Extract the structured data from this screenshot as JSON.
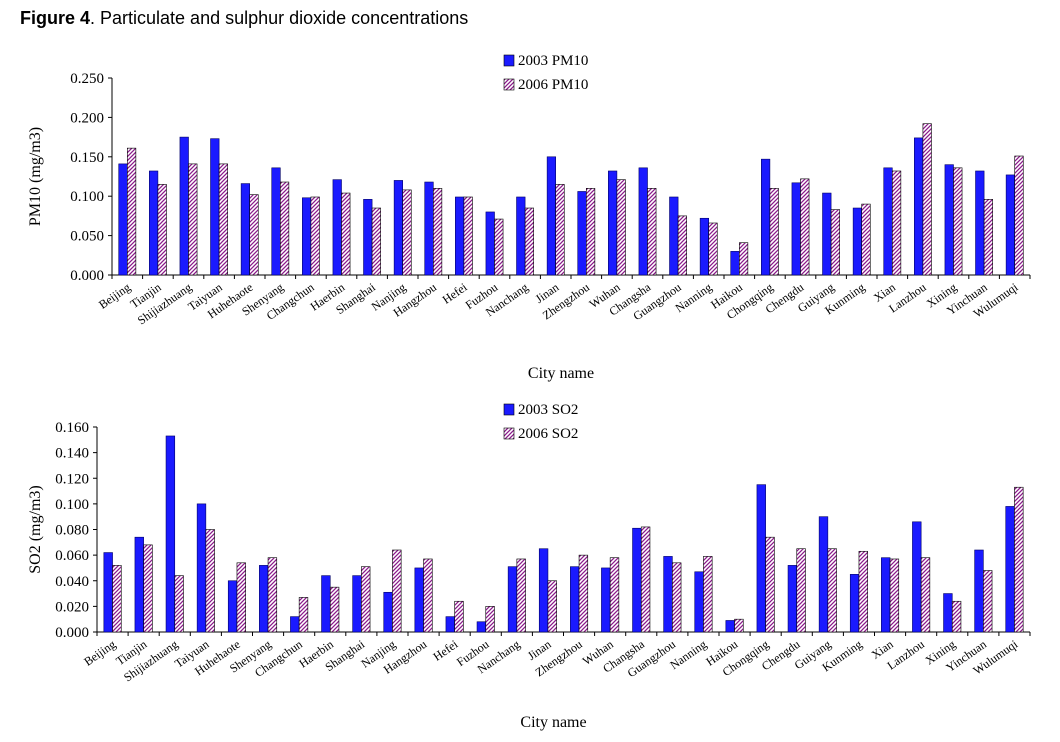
{
  "figure": {
    "label": "Figure 4",
    "caption": ". Particulate and sulphur dioxide concentrations"
  },
  "colors": {
    "series_2003": "#1a1aff",
    "series_2006": "#8b1a8b"
  },
  "chart_data": [
    {
      "type": "bar",
      "ylabel": "PM10 (mg/m3)",
      "xlabel": "City name",
      "ylim": [
        0,
        0.25
      ],
      "yticks": [
        "0.000",
        "0.050",
        "0.100",
        "0.150",
        "0.200",
        "0.250"
      ],
      "legend_position": "top-center",
      "categories": [
        "Beijing",
        "Tianjin",
        "Shijiazhuang",
        "Taiyuan",
        "Huhehaote",
        "Shenyang",
        "Changchun",
        "Haerbin",
        "Shanghai",
        "Nanjing",
        "Hangzhou",
        "Hefei",
        "Fuzhou",
        "Nanchang",
        "Jinan",
        "Zhengzhou",
        "Wuhan",
        "Changsha",
        "Guangzhou",
        "Nanning",
        "Haikou",
        "Chongqing",
        "Chengdu",
        "Guiyang",
        "Kunming",
        "Xian",
        "Lanzhou",
        "Xining",
        "Yinchuan",
        "Wulumuqi"
      ],
      "series": [
        {
          "name": "2003 PM10",
          "values": [
            0.141,
            0.132,
            0.175,
            0.173,
            0.116,
            0.136,
            0.098,
            0.121,
            0.096,
            0.12,
            0.118,
            0.099,
            0.08,
            0.099,
            0.15,
            0.106,
            0.132,
            0.136,
            0.099,
            0.072,
            0.03,
            0.147,
            0.117,
            0.104,
            0.085,
            0.136,
            0.174,
            0.14,
            0.132,
            0.127
          ]
        },
        {
          "name": "2006 PM10",
          "values": [
            0.161,
            0.115,
            0.141,
            0.141,
            0.102,
            0.118,
            0.099,
            0.104,
            0.085,
            0.108,
            0.11,
            0.099,
            0.071,
            0.085,
            0.115,
            0.11,
            0.121,
            0.11,
            0.075,
            0.066,
            0.041,
            0.11,
            0.122,
            0.083,
            0.09,
            0.132,
            0.192,
            0.136,
            0.096,
            0.151
          ]
        }
      ]
    },
    {
      "type": "bar",
      "ylabel": "SO2 (mg/m3)",
      "xlabel": "City name",
      "ylim": [
        0,
        0.16
      ],
      "yticks": [
        "0.000",
        "0.020",
        "0.040",
        "0.060",
        "0.080",
        "0.100",
        "0.120",
        "0.140",
        "0.160"
      ],
      "legend_position": "top-center",
      "categories": [
        "Beijing",
        "Tianjin",
        "Shijiazhuang",
        "Taiyuan",
        "Huhehaote",
        "Shenyang",
        "Changchun",
        "Haerbin",
        "Shanghai",
        "Nanjing",
        "Hangzhou",
        "Hefei",
        "Fuzhou",
        "Nanchang",
        "Jinan",
        "Zhengzhou",
        "Wuhan",
        "Changsha",
        "Guangzhou",
        "Nanning",
        "Haikou",
        "Chongqing",
        "Chengdu",
        "Guiyang",
        "Kunming",
        "Xian",
        "Lanzhou",
        "Xining",
        "Yinchuan",
        "Wulumuqi"
      ],
      "series": [
        {
          "name": "2003 SO2",
          "values": [
            0.062,
            0.074,
            0.153,
            0.1,
            0.04,
            0.052,
            0.012,
            0.044,
            0.044,
            0.031,
            0.05,
            0.012,
            0.008,
            0.051,
            0.065,
            0.051,
            0.05,
            0.081,
            0.059,
            0.047,
            0.009,
            0.115,
            0.052,
            0.09,
            0.045,
            0.058,
            0.086,
            0.03,
            0.064,
            0.098
          ]
        },
        {
          "name": "2006 SO2",
          "values": [
            0.052,
            0.068,
            0.044,
            0.08,
            0.054,
            0.058,
            0.027,
            0.035,
            0.051,
            0.064,
            0.057,
            0.024,
            0.02,
            0.057,
            0.04,
            0.06,
            0.058,
            0.082,
            0.054,
            0.059,
            0.01,
            0.074,
            0.065,
            0.065,
            0.063,
            0.057,
            0.058,
            0.024,
            0.048,
            0.113
          ]
        }
      ]
    }
  ]
}
